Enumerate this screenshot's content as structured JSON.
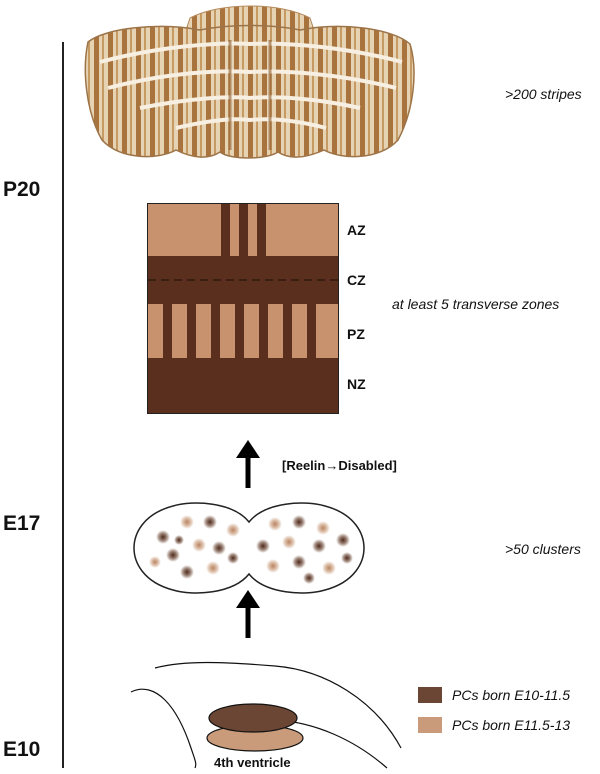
{
  "stages": {
    "p20": "P20",
    "e17": "E17",
    "e10": "E10"
  },
  "notes": {
    "stripes": ">200 stripes",
    "zones": "at least 5 transverse zones",
    "clusters": ">50 clusters"
  },
  "zone_labels": {
    "az": "AZ",
    "cz": "CZ",
    "pz": "PZ",
    "nz": "NZ"
  },
  "transition_label": "[Reelin→Disabled]",
  "bottom_label": "4th ventricle",
  "legend": [
    {
      "label": "PCs born E10-11.5",
      "color": "#6b4634"
    },
    {
      "label": "PCs born E11.5-13",
      "color": "#c99b7a"
    }
  ],
  "colors": {
    "dark": "#5a2f1d",
    "light": "#c9926e",
    "stripe_light": "#efe3cf",
    "stripe_dark": "#9c6a38"
  }
}
